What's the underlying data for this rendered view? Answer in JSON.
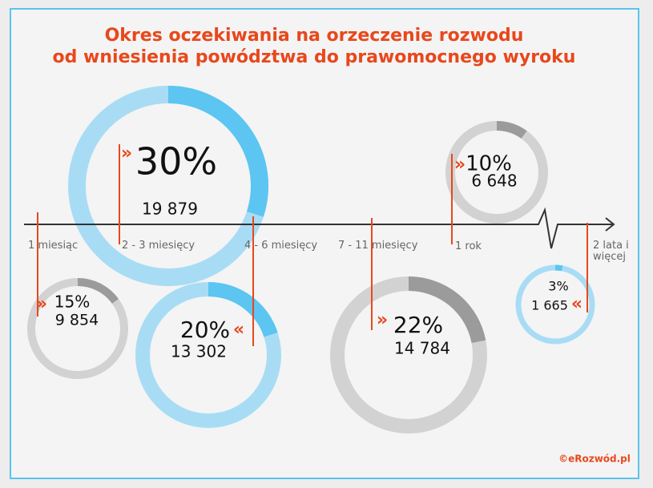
{
  "chart_data": {
    "type": "ring",
    "title_lines": [
      "Okres oczekiwania na orzeczenie rozwodu",
      "od wniesienia powództwa do prawomocnego wyroku"
    ],
    "categories": [
      "1 miesiąc",
      "2 - 3 miesięcy",
      "4 - 6 miesięcy",
      "7 - 11 miesięcy",
      "1 rok",
      "2 lata i więcej"
    ],
    "values": [
      15,
      30,
      20,
      22,
      10,
      3
    ],
    "value_labels": [
      "15%",
      "30%",
      "20%",
      "22%",
      "10%",
      "3%"
    ],
    "counts": [
      9854,
      19879,
      13302,
      14784,
      6648,
      1665
    ],
    "count_labels": [
      "9 854",
      "19 879",
      "13 302",
      "14 784",
      "6 648",
      "1 665"
    ],
    "ring_colors": [
      [
        "#d2d2d2",
        "#9b9b9b"
      ],
      [
        "#a8dcf5",
        "#5cc5f1"
      ],
      [
        "#a8dcf5",
        "#5cc5f1"
      ],
      [
        "#d2d2d2",
        "#9b9b9b"
      ],
      [
        "#d2d2d2",
        "#9b9b9b"
      ],
      [
        "#a8dcf5",
        "#5cc5f1"
      ]
    ],
    "source": "©eRozwód.pl"
  }
}
